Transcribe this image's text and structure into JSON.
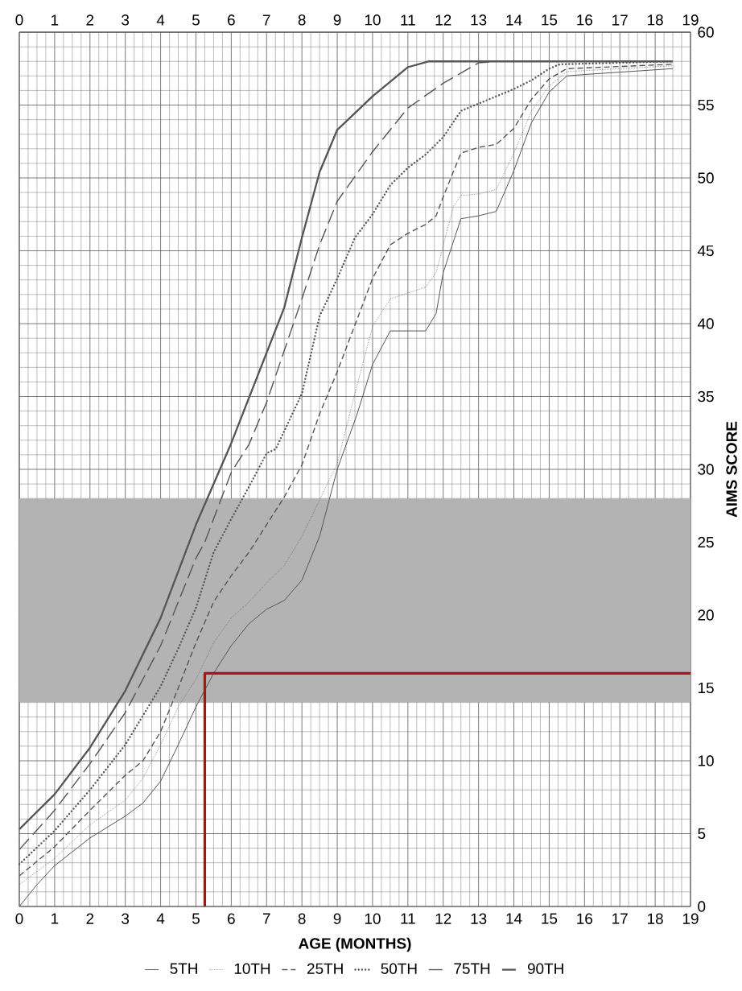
{
  "chart_data": {
    "type": "line",
    "xlabel": "AGE (MONTHS)",
    "ylabel": "AIMS SCORE",
    "xlim": [
      0,
      19
    ],
    "xticks": [
      0,
      1,
      2,
      3,
      4,
      5,
      6,
      7,
      8,
      9,
      10,
      11,
      12,
      13,
      14,
      15,
      16,
      17,
      18,
      19
    ],
    "x2lim": [
      0,
      19
    ],
    "x2ticks": [
      0,
      1,
      2,
      3,
      4,
      5,
      6,
      7,
      8,
      9,
      10,
      11,
      12,
      13,
      14,
      15,
      16,
      17,
      18,
      19
    ],
    "ylim": [
      0,
      60
    ],
    "yticks": [
      0,
      5,
      10,
      15,
      20,
      25,
      30,
      35,
      40,
      45,
      50,
      55,
      60
    ],
    "grid": true,
    "legend": "bottom",
    "bands": [
      {
        "axis": "y",
        "from": 14,
        "to": 28,
        "color": "#b3b3b3"
      }
    ],
    "series": [
      {
        "name": "5TH",
        "color": "#555555",
        "line_style": "solid",
        "x": [
          0,
          0.5,
          1,
          2,
          3,
          3.5,
          4,
          4.5,
          5,
          5.5,
          6,
          6.5,
          7,
          7.5,
          8,
          8.5,
          9,
          9.55,
          10,
          10.5,
          11,
          11.5,
          11.8,
          12,
          12.5,
          13,
          13.5,
          14,
          14.5,
          15,
          15.5,
          16,
          18.5
        ],
        "values": [
          0,
          1.5,
          2.8,
          4.7,
          6.2,
          7.1,
          8.6,
          11.1,
          13.7,
          16,
          17.9,
          19.4,
          20.4,
          21,
          22.4,
          25.4,
          30,
          33.7,
          37.2,
          39.5,
          39.5,
          39.5,
          40.7,
          43.5,
          47.2,
          47.4,
          47.7,
          50.5,
          53.8,
          55.9,
          57,
          57.1,
          57.5
        ]
      },
      {
        "name": "10TH",
        "color": "#555555",
        "line_style": "dotted",
        "x": [
          0,
          1,
          2,
          3,
          3.5,
          4,
          4.5,
          5,
          5.5,
          6,
          6.5,
          7,
          7.5,
          8,
          8.5,
          9,
          9.5,
          10,
          10.5,
          11,
          11.5,
          11.8,
          12,
          12.3,
          12.5,
          13,
          13.5,
          14,
          14.5,
          15,
          15.5,
          18.5
        ],
        "values": [
          1.5,
          3.3,
          5.6,
          7.3,
          8.8,
          11.1,
          13.7,
          15.6,
          18.1,
          19.8,
          20.9,
          22.2,
          23.4,
          25.4,
          27.9,
          30.4,
          35.2,
          39.8,
          41.7,
          42.1,
          42.5,
          43.5,
          45.4,
          48.1,
          48.8,
          48.9,
          49.2,
          51.7,
          54.6,
          56.3,
          57.3,
          57.7
        ]
      },
      {
        "name": "25TH",
        "color": "#555555",
        "line_style": "dashed",
        "x": [
          0,
          1,
          2,
          3,
          3.5,
          4,
          4.5,
          5,
          5.5,
          6,
          6.5,
          7,
          7.5,
          8,
          8.5,
          9,
          9.5,
          10,
          10.5,
          11,
          11.5,
          11.8,
          12,
          12.5,
          13,
          13.5,
          14,
          14.5,
          15,
          15.5,
          18.5
        ],
        "values": [
          2.1,
          4.1,
          6.6,
          9,
          10,
          12,
          15,
          18.1,
          20.9,
          22.7,
          24.3,
          26.2,
          28.1,
          30.3,
          33.8,
          36.7,
          39.9,
          43.1,
          45.4,
          46.2,
          46.8,
          47.4,
          48.7,
          51.7,
          52.1,
          52.3,
          53.4,
          55.4,
          56.8,
          57.5,
          57.8
        ]
      },
      {
        "name": "50TH",
        "color": "#555555",
        "line_style": "dotted",
        "x": [
          0,
          1,
          2,
          3,
          4,
          4.5,
          5,
          5.5,
          6,
          6.5,
          7,
          7.26,
          8,
          8.5,
          9,
          9.5,
          10,
          10.5,
          11,
          11.5,
          12,
          12.5,
          13,
          14,
          14.5,
          15,
          15.3,
          18.5
        ],
        "values": [
          2.9,
          5.2,
          8,
          11.1,
          15.1,
          17.7,
          20.5,
          24.3,
          26.6,
          28.8,
          31.1,
          31.4,
          35.2,
          40.5,
          43.1,
          45.9,
          47.5,
          49.5,
          50.7,
          51.6,
          52.8,
          54.6,
          55.1,
          56.1,
          56.7,
          57.5,
          57.8,
          58
        ]
      },
      {
        "name": "75TH",
        "color": "#555555",
        "line_style": "dashed",
        "x": [
          0,
          1,
          2,
          3,
          4,
          5,
          5.25,
          6,
          6.5,
          7,
          8,
          8.5,
          9,
          10,
          11,
          12,
          13,
          13.5,
          18.5
        ],
        "values": [
          3.9,
          6.6,
          9.8,
          13.3,
          17.9,
          23.9,
          25,
          29.8,
          31.7,
          34.6,
          41.7,
          45.4,
          48.4,
          51.8,
          54.8,
          56.5,
          57.9,
          58,
          58
        ]
      },
      {
        "name": "90TH",
        "color": "#555555",
        "line_style": "solid",
        "x": [
          0,
          1,
          2,
          3,
          4,
          5,
          6,
          7,
          7.5,
          8,
          8.5,
          9,
          10,
          11,
          11.6,
          18.5
        ],
        "values": [
          5.3,
          7.7,
          10.9,
          14.8,
          19.8,
          26.2,
          31.8,
          38,
          41.1,
          45.9,
          50.4,
          53.3,
          55.6,
          57.6,
          58,
          58
        ]
      },
      {
        "color": "#b01010",
        "line_style": "solid",
        "x": [
          5.25,
          5.25,
          19
        ],
        "values": [
          0,
          16,
          16
        ]
      }
    ]
  }
}
